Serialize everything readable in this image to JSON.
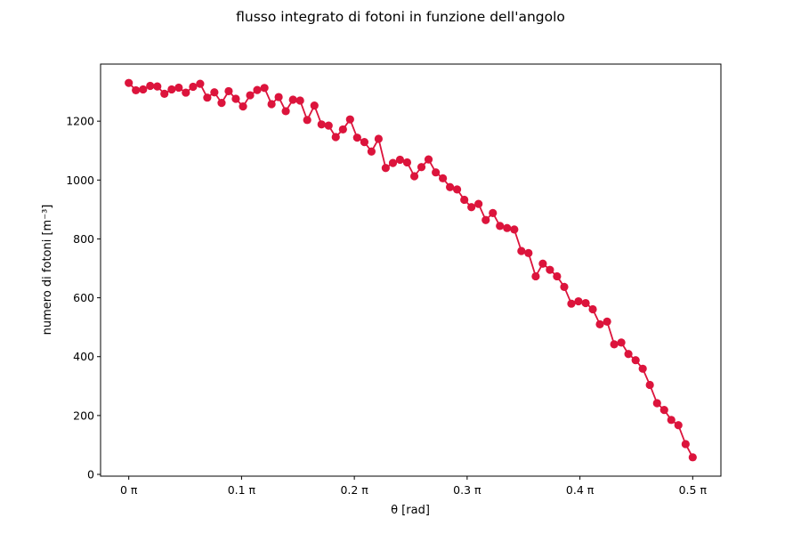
{
  "chart_data": {
    "type": "line",
    "title": "flusso integrato di fotoni in funzione dell'angolo",
    "xlabel": "θ [rad]",
    "ylabel": "numero di fotoni [m⁻³]",
    "xlim": [
      -0.025,
      0.525
    ],
    "ylim": [
      -6,
      1394
    ],
    "x_unit_suffix": "π",
    "xticks": [
      0,
      0.1,
      0.2,
      0.3,
      0.4,
      0.5
    ],
    "xtick_labels": [
      "0 π",
      "0.1 π",
      "0.2 π",
      "0.3 π",
      "0.4 π",
      "0.5 π"
    ],
    "yticks": [
      0,
      200,
      400,
      600,
      800,
      1000,
      1200
    ],
    "ytick_labels": [
      "0",
      "200",
      "400",
      "600",
      "800",
      "1000",
      "1200"
    ],
    "grid": false,
    "series": [
      {
        "color": "#dc143c",
        "marker": "circle",
        "x": [
          0.0,
          0.0063,
          0.0127,
          0.019,
          0.0253,
          0.0316,
          0.038,
          0.0443,
          0.0506,
          0.057,
          0.0633,
          0.0696,
          0.0759,
          0.0823,
          0.0886,
          0.0949,
          0.1013,
          0.1076,
          0.1139,
          0.1203,
          0.1266,
          0.1329,
          0.1392,
          0.1456,
          0.1519,
          0.1582,
          0.1646,
          0.1709,
          0.1772,
          0.1835,
          0.1899,
          0.1962,
          0.2025,
          0.2089,
          0.2152,
          0.2215,
          0.2278,
          0.2342,
          0.2405,
          0.2468,
          0.2532,
          0.2595,
          0.2658,
          0.2722,
          0.2785,
          0.2848,
          0.2911,
          0.2975,
          0.3038,
          0.3101,
          0.3165,
          0.3228,
          0.3291,
          0.3354,
          0.3418,
          0.3481,
          0.3544,
          0.3608,
          0.3671,
          0.3734,
          0.3797,
          0.3861,
          0.3924,
          0.3987,
          0.4051,
          0.4114,
          0.4177,
          0.4241,
          0.4304,
          0.4367,
          0.443,
          0.4494,
          0.4557,
          0.462,
          0.4684,
          0.4747,
          0.481,
          0.4873,
          0.4937,
          0.5
        ],
        "values": [
          1330,
          1305,
          1308,
          1320,
          1318,
          1293,
          1308,
          1314,
          1297,
          1317,
          1327,
          1280,
          1298,
          1262,
          1302,
          1276,
          1250,
          1288,
          1306,
          1313,
          1258,
          1282,
          1234,
          1273,
          1270,
          1204,
          1253,
          1189,
          1185,
          1146,
          1172,
          1206,
          1144,
          1129,
          1097,
          1140,
          1041,
          1058,
          1069,
          1060,
          1013,
          1044,
          1070,
          1026,
          1006,
          976,
          968,
          933,
          908,
          919,
          864,
          888,
          844,
          837,
          832,
          759,
          752,
          673,
          716,
          695,
          673,
          637,
          580,
          588,
          582,
          561,
          510,
          519,
          442,
          448,
          409,
          388,
          359,
          304,
          242,
          219,
          185,
          167,
          103,
          58
        ]
      }
    ]
  }
}
